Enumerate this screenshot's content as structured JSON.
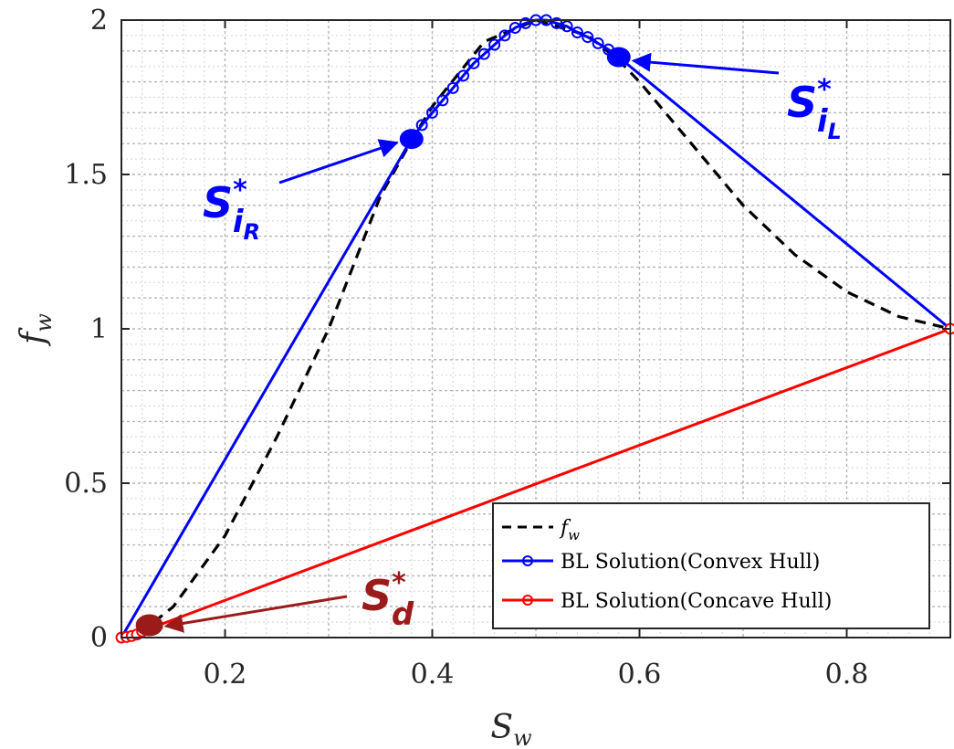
{
  "chart_data": {
    "type": "line",
    "xlabel": "S",
    "xlabel_sub": "w",
    "ylabel": "f",
    "ylabel_sub": "w",
    "xlim": [
      0.1,
      0.9
    ],
    "ylim": [
      0,
      2
    ],
    "xticks": [
      0.2,
      0.4,
      0.6,
      0.8
    ],
    "xtick_labels": [
      "0.2",
      "0.4",
      "0.6",
      "0.8"
    ],
    "yticks": [
      0,
      0.5,
      1,
      1.5,
      2
    ],
    "ytick_labels": [
      "0",
      "0.5",
      "1",
      "1.5",
      "2"
    ],
    "grid": "major and minor, dotted",
    "legend_position": "bottom-right",
    "colors": {
      "fw": "#000000",
      "convex": "#0000ff",
      "concave": "#ff0000",
      "sd": "#9b1b1b"
    },
    "series": [
      {
        "name": "f_w",
        "legend_label": "f",
        "legend_sub": "w",
        "style": "dashed",
        "x": [
          0.1,
          0.12,
          0.15,
          0.2,
          0.25,
          0.3,
          0.35,
          0.38,
          0.4,
          0.45,
          0.5,
          0.55,
          0.58,
          0.6,
          0.65,
          0.7,
          0.75,
          0.8,
          0.85,
          0.9
        ],
        "y": [
          0.0,
          0.02,
          0.1,
          0.33,
          0.65,
          1.0,
          1.43,
          1.61,
          1.72,
          1.93,
          2.0,
          1.95,
          1.87,
          1.8,
          1.6,
          1.4,
          1.24,
          1.12,
          1.04,
          1.0
        ]
      },
      {
        "name": "BL Solution(Convex Hull)",
        "style": "solid-markers",
        "x": [
          0.1,
          0.38,
          0.39,
          0.4,
          0.41,
          0.42,
          0.43,
          0.44,
          0.45,
          0.46,
          0.47,
          0.48,
          0.49,
          0.5,
          0.51,
          0.52,
          0.53,
          0.54,
          0.55,
          0.56,
          0.57,
          0.58,
          0.9
        ],
        "y": [
          0.0,
          1.615,
          1.66,
          1.7,
          1.74,
          1.78,
          1.82,
          1.86,
          1.89,
          1.92,
          1.95,
          1.975,
          1.99,
          2.0,
          2.0,
          1.99,
          1.98,
          1.96,
          1.945,
          1.925,
          1.905,
          1.88,
          1.0
        ]
      },
      {
        "name": "BL Solution(Concave Hull)",
        "style": "solid-markers",
        "x": [
          0.1,
          0.105,
          0.11,
          0.115,
          0.12,
          0.9
        ],
        "y": [
          0.0,
          0.002,
          0.005,
          0.01,
          0.02,
          1.0
        ]
      }
    ],
    "annotations": [
      {
        "label": "S",
        "sup": "*",
        "sub": "i",
        "subsub": "R",
        "point": [
          0.38,
          1.615
        ],
        "color": "#0000ff"
      },
      {
        "label": "S",
        "sup": "*",
        "sub": "i",
        "subsub": "L",
        "point": [
          0.58,
          1.88
        ],
        "color": "#0000ff"
      },
      {
        "label": "S",
        "sup": "*",
        "sub": "d",
        "point": [
          0.127,
          0.04
        ],
        "color": "#9b1b1b"
      }
    ]
  }
}
